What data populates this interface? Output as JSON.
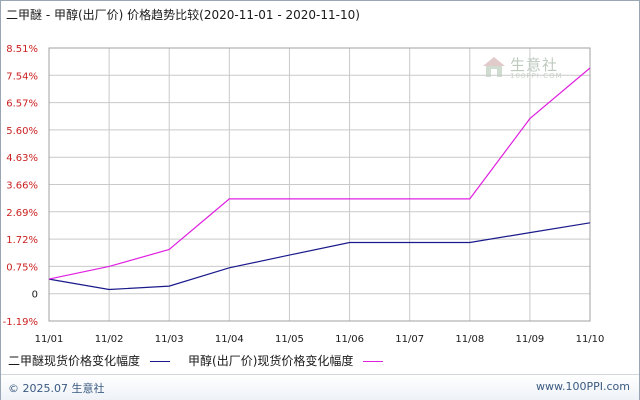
{
  "title": "二甲醚 - 甲醇(出厂价) 价格趋势比较(2020-11-01 - 2020-11-10)",
  "watermark": {
    "cn": "生意社",
    "en": "100PPI.COM"
  },
  "footer": {
    "copyright": "© 2025.07 生意社",
    "site": "www.100PPI.com"
  },
  "chart_data": {
    "type": "line",
    "title": "二甲醚 - 甲醇(出厂价) 价格趋势比较(2020-11-01 - 2020-11-10)",
    "categories": [
      "11/01",
      "11/02",
      "11/03",
      "11/04",
      "11/05",
      "11/06",
      "11/07",
      "11/08",
      "11/09",
      "11/10"
    ],
    "y_ticks": [
      "8.51%",
      "7.54%",
      "6.57%",
      "5.60%",
      "4.63%",
      "3.66%",
      "2.69%",
      "1.72%",
      "0.75%",
      "0",
      "-1.19%"
    ],
    "ylim": [
      -1.19,
      8.51
    ],
    "grid": true,
    "legend_position": "bottom",
    "series": [
      {
        "name": "二甲醚现货价格变化幅度",
        "color": "#1a1a8c",
        "values": [
          0.3,
          -0.07,
          0.05,
          0.7,
          1.15,
          1.6,
          1.6,
          1.6,
          1.95,
          2.3
        ]
      },
      {
        "name": "甲醇(出厂价)现货价格变化幅度",
        "color": "#e020e0",
        "values": [
          0.3,
          0.75,
          1.35,
          3.15,
          3.15,
          3.15,
          3.15,
          3.15,
          6.0,
          7.8
        ]
      }
    ]
  }
}
